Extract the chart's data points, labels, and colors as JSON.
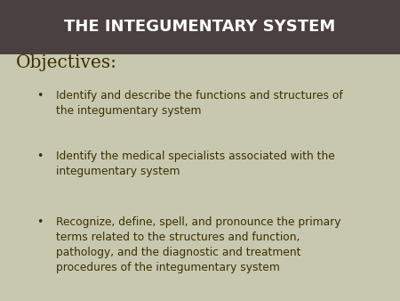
{
  "title": "THE INTEGUMENTARY SYSTEM",
  "title_bg_color": "#4a4040",
  "title_text_color": "#ffffff",
  "body_bg_color": "#c8c8b0",
  "objectives_label": "Objectives:",
  "objectives_color": "#3a3000",
  "bullet_points": [
    "Identify and describe the functions and structures of\nthe integumentary system",
    "Identify the medical specialists associated with the\nintegumentary system",
    "Recognize, define, spell, and pronounce the primary\nterms related to the structures and function,\npathology, and the diagnostic and treatment\nprocedures of the integumentary system"
  ],
  "bullet_color": "#3a3000",
  "figsize": [
    4.5,
    3.38
  ],
  "dpi": 100
}
